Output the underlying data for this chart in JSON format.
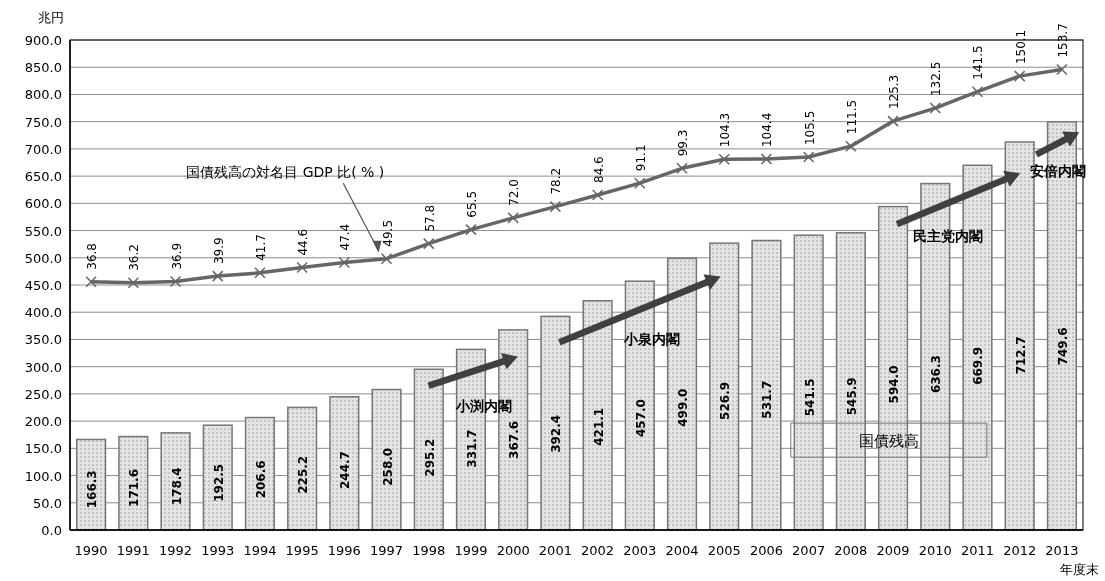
{
  "chart_data": {
    "type": "bar",
    "categories": [
      "1990",
      "1991",
      "1992",
      "1993",
      "1994",
      "1995",
      "1996",
      "1997",
      "1998",
      "1999",
      "2000",
      "2001",
      "2002",
      "2003",
      "2004",
      "2005",
      "2006",
      "2007",
      "2008",
      "2009",
      "2010",
      "2011",
      "2012",
      "2013"
    ],
    "series": [
      {
        "name": "国債残高",
        "color": "#e4e4e4",
        "values": [
          166.3,
          171.6,
          178.4,
          192.5,
          206.6,
          225.2,
          244.7,
          258.0,
          295.2,
          331.7,
          367.6,
          392.4,
          421.1,
          457.0,
          499.0,
          526.9,
          531.7,
          541.5,
          545.9,
          594.0,
          636.3,
          669.9,
          712.7,
          749.6
        ],
        "value_labels": [
          "166.3",
          "171.6",
          "178.4",
          "192.5",
          "206.6",
          "225.2",
          "244.7",
          "258.0",
          "295.2",
          "331.7",
          "367.6",
          "392.4",
          "421.1",
          "457.0",
          "499.0",
          "526.9",
          "531.7",
          "541.5",
          "545.9",
          "594.0",
          "636.3",
          "669.9",
          "712.7",
          "749.6"
        ]
      },
      {
        "name": "国債残高の対名目 GDP 比( % )",
        "type": "line",
        "axis": "y2",
        "color": "#666666",
        "marker": "cross",
        "values": [
          36.8,
          36.2,
          36.9,
          39.9,
          41.7,
          44.6,
          47.4,
          49.5,
          57.8,
          65.5,
          72.0,
          78.2,
          84.6,
          91.1,
          99.3,
          104.3,
          104.4,
          105.5,
          111.5,
          125.3,
          132.5,
          141.5,
          150.1,
          153.7
        ],
        "value_labels": [
          "36.8",
          "36.2",
          "36.9",
          "39.9",
          "41.7",
          "44.6",
          "47.4",
          "49.5",
          "57.8",
          "65.5",
          "72.0",
          "78.2",
          "84.6",
          "91.1",
          "99.3",
          "104.3",
          "104.4",
          "105.5",
          "111.5",
          "125.3",
          "132.5",
          "141.5",
          "150.1",
          "153.7"
        ]
      }
    ],
    "ylabel": "兆円",
    "xlabel": "年度末",
    "ylim": [
      0,
      900
    ],
    "yticks": [
      {
        "value": 0,
        "label": "0.0"
      },
      {
        "value": 50,
        "label": "50.0"
      },
      {
        "value": 100,
        "label": "100.0"
      },
      {
        "value": 150,
        "label": "150.0"
      },
      {
        "value": 200,
        "label": "200.0"
      },
      {
        "value": 250,
        "label": "250.0"
      },
      {
        "value": 300,
        "label": "300.0"
      },
      {
        "value": 350,
        "label": "350.0"
      },
      {
        "value": 400,
        "label": "400.0"
      },
      {
        "value": 450,
        "label": "450.0"
      },
      {
        "value": 500,
        "label": "500.0"
      },
      {
        "value": 550,
        "label": "550.0"
      },
      {
        "value": 600,
        "label": "600.0"
      },
      {
        "value": 650,
        "label": "650.0"
      },
      {
        "value": 700,
        "label": "700.0"
      },
      {
        "value": 750,
        "label": "750.0"
      },
      {
        "value": 800,
        "label": "800.0"
      },
      {
        "value": 850,
        "label": "850.0"
      },
      {
        "value": 900,
        "label": "900.0"
      }
    ],
    "y2lim": [
      -100,
      170
    ],
    "grid": "y",
    "legend": false,
    "annotations": [
      "小渕内閣",
      "小泉内閣",
      "民主党内閣",
      "安倍内閣"
    ]
  }
}
